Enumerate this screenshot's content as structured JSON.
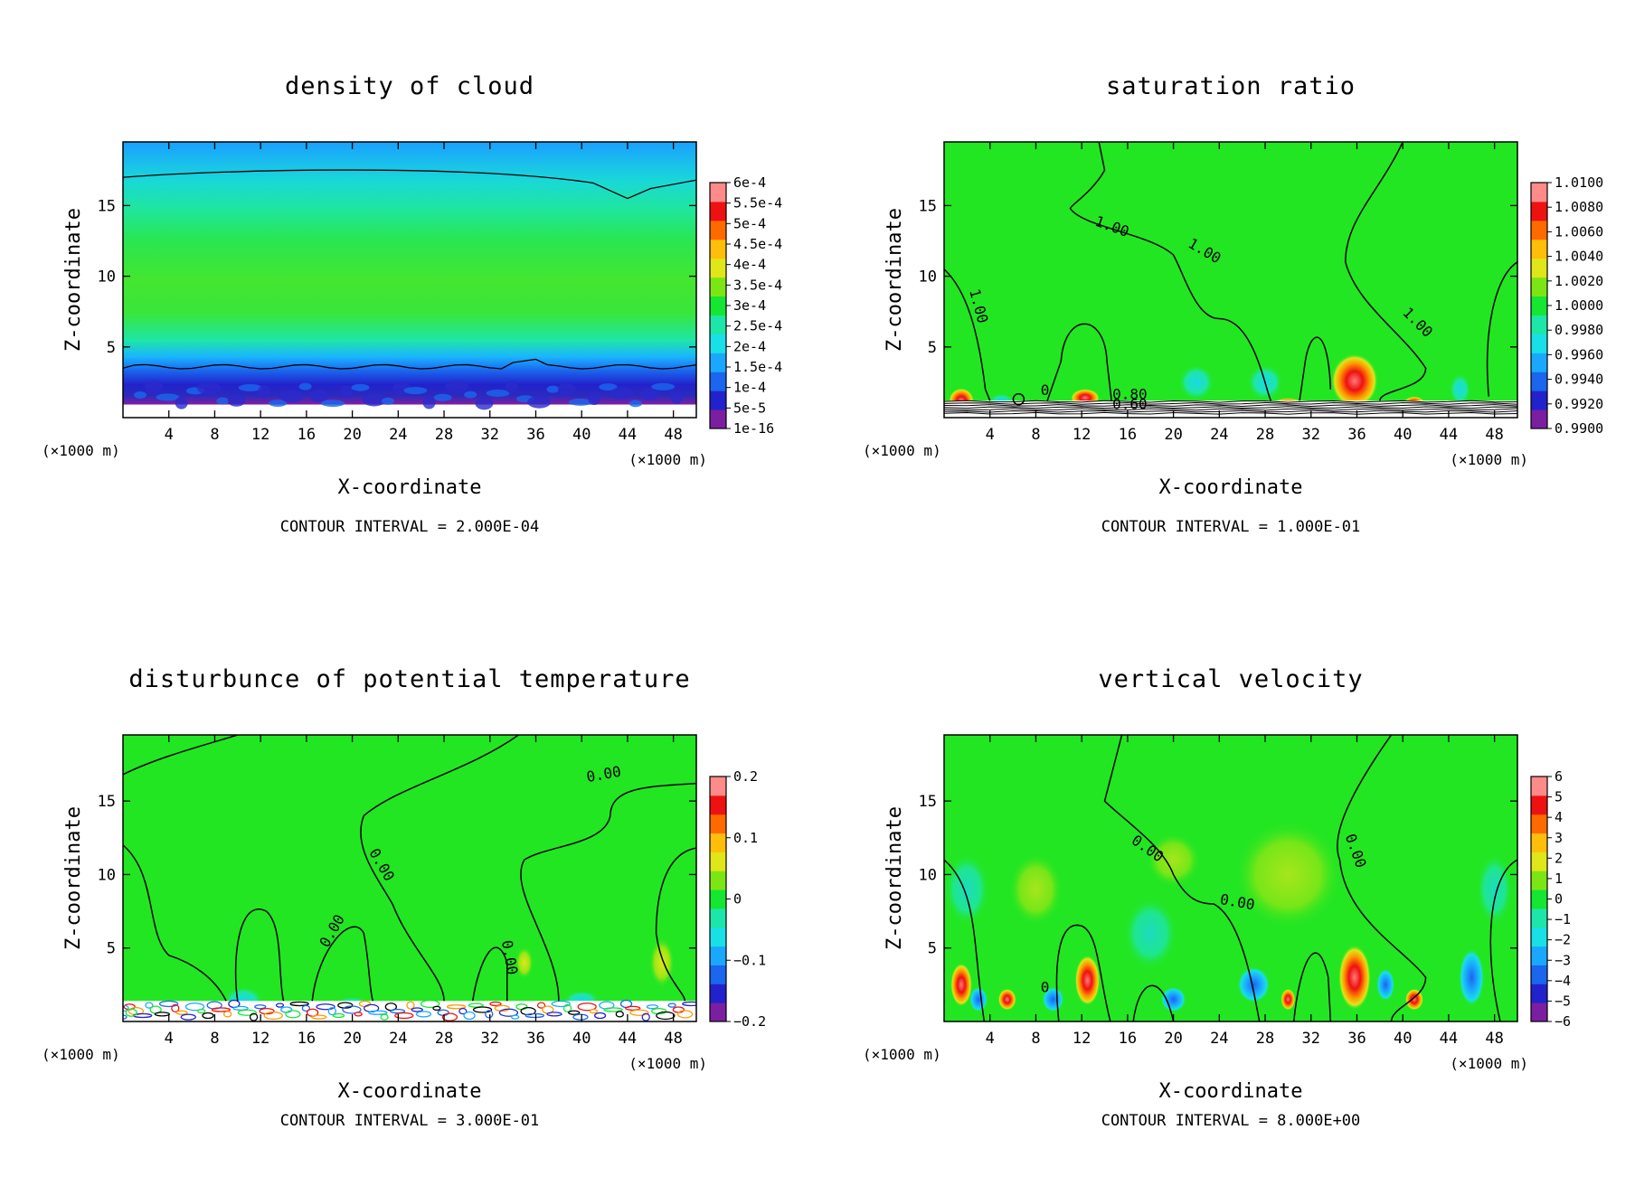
{
  "chart_data": [
    {
      "type": "heatmap",
      "title": "density of cloud",
      "xlabel": "X-coordinate",
      "ylabel": "Z-coordinate",
      "x_unit_left": "(×1000 m)",
      "x_unit_right": "(×1000 m)",
      "xlim": [
        0,
        50
      ],
      "ylim": [
        0,
        19.5
      ],
      "x_ticks": [
        "4",
        "8",
        "12",
        "16",
        "20",
        "24",
        "28",
        "32",
        "36",
        "40",
        "44",
        "48"
      ],
      "y_ticks": [
        "5",
        "10",
        "15"
      ],
      "colorbar_labels": [
        "6e-4",
        "5.5e-4",
        "5e-4",
        "4.5e-4",
        "4e-4",
        "3.5e-4",
        "3e-4",
        "2.5e-4",
        "2e-4",
        "1.5e-4",
        "1e-4",
        "5e-5",
        "1e-16"
      ],
      "contour_interval": "CONTOUR INTERVAL = 2.000E-04",
      "contour_labels": []
    },
    {
      "type": "heatmap",
      "title": "saturation ratio",
      "xlabel": "X-coordinate",
      "ylabel": "Z-coordinate",
      "x_unit_left": "(×1000 m)",
      "x_unit_right": "(×1000 m)",
      "xlim": [
        0,
        50
      ],
      "ylim": [
        0,
        19.5
      ],
      "x_ticks": [
        "4",
        "8",
        "12",
        "16",
        "20",
        "24",
        "28",
        "32",
        "36",
        "40",
        "44",
        "48"
      ],
      "y_ticks": [
        "5",
        "10",
        "15"
      ],
      "colorbar_labels": [
        "1.0100",
        "1.0080",
        "1.0060",
        "1.0040",
        "1.0020",
        "1.0000",
        "0.9980",
        "0.9960",
        "0.9940",
        "0.9920",
        "0.9900"
      ],
      "contour_interval": "CONTOUR INTERVAL = 1.000E-01",
      "contour_labels": [
        "1.00",
        "1.00",
        "1.00",
        "1.00",
        "0.80",
        "0.60",
        "0"
      ]
    },
    {
      "type": "heatmap",
      "title": "disturbunce of potential temperature",
      "xlabel": "X-coordinate",
      "ylabel": "Z-coordinate",
      "x_unit_left": "(×1000 m)",
      "x_unit_right": "(×1000 m)",
      "xlim": [
        0,
        50
      ],
      "ylim": [
        0,
        19.5
      ],
      "x_ticks": [
        "4",
        "8",
        "12",
        "16",
        "20",
        "24",
        "28",
        "32",
        "36",
        "40",
        "44",
        "48"
      ],
      "y_ticks": [
        "5",
        "10",
        "15"
      ],
      "colorbar_labels": [
        "0.2",
        "0.1",
        "0",
        "−0.1",
        "−0.2"
      ],
      "contour_interval": "CONTOUR INTERVAL = 3.000E-01",
      "contour_labels": [
        "0.00",
        "0.00",
        "0.00",
        "0.00"
      ]
    },
    {
      "type": "heatmap",
      "title": "vertical velocity",
      "xlabel": "X-coordinate",
      "ylabel": "Z-coordinate",
      "x_unit_left": "(×1000 m)",
      "x_unit_right": "(×1000 m)",
      "xlim": [
        0,
        50
      ],
      "ylim": [
        0,
        19.5
      ],
      "x_ticks": [
        "4",
        "8",
        "12",
        "16",
        "20",
        "24",
        "28",
        "32",
        "36",
        "40",
        "44",
        "48"
      ],
      "y_ticks": [
        "5",
        "10",
        "15"
      ],
      "colorbar_labels": [
        "6",
        "5",
        "4",
        "3",
        "2",
        "1",
        "0",
        "−1",
        "−2",
        "−3",
        "−4",
        "−5",
        "−6"
      ],
      "contour_interval": "CONTOUR INTERVAL = 8.000E+00",
      "contour_labels": [
        "0.00",
        "0.00",
        "0.00",
        "0"
      ]
    }
  ],
  "palette": {
    "rainbow": [
      "#7b1fa2",
      "#2222cc",
      "#1a66ee",
      "#1aa8ff",
      "#19e0e6",
      "#1ee6a8",
      "#14e632",
      "#7ce614",
      "#dfe619",
      "#ffbe0a",
      "#ff6a00",
      "#ee1111",
      "#ff8a8a"
    ],
    "background": "#ffffff",
    "contour": "#000000",
    "field_green": "#22e622"
  }
}
